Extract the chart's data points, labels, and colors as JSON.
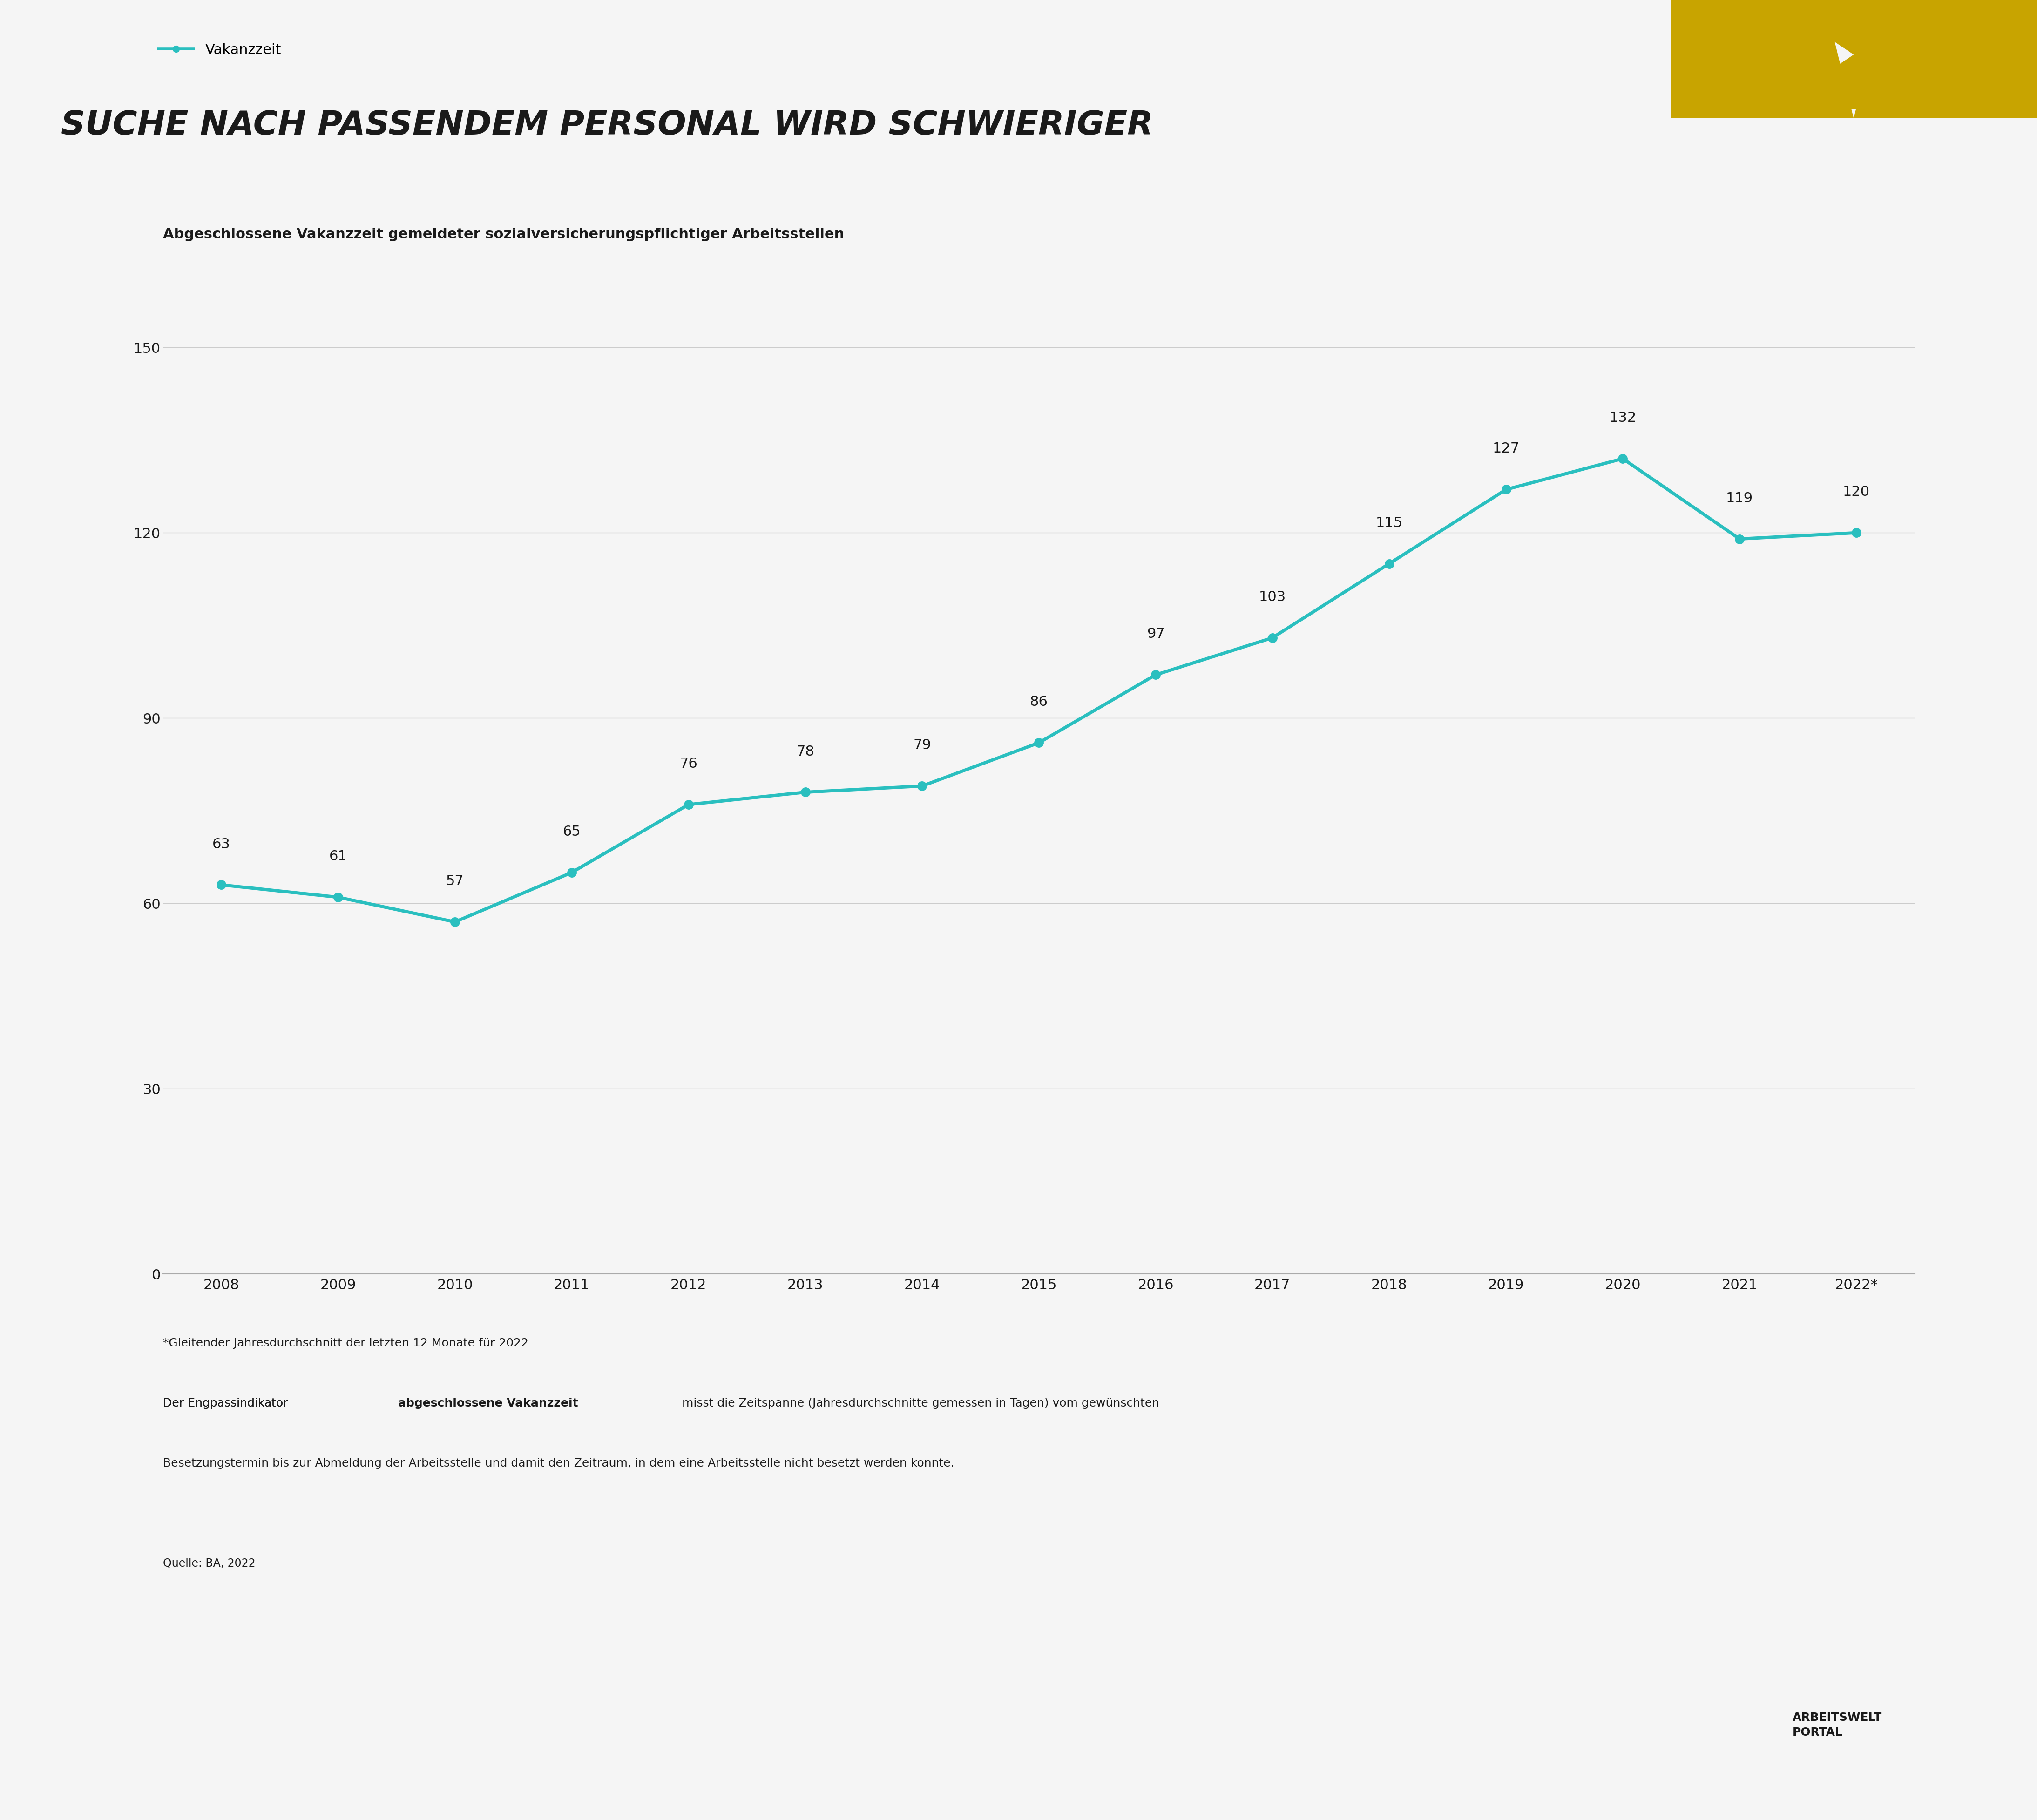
{
  "title": "SUCHE NACH PASSENDEM PERSONAL WIRD SCHWIERIGER",
  "subtitle": "Abgeschlossene Vakanzzeit gemeldeter sozialversicherungspflichtiger Arbeitsstellen",
  "legend_label": "Vakanzzeit",
  "years": [
    "2008",
    "2009",
    "2010",
    "2011",
    "2012",
    "2013",
    "2014",
    "2015",
    "2016",
    "2017",
    "2018",
    "2019",
    "2020",
    "2021",
    "2022*"
  ],
  "values": [
    63,
    61,
    57,
    65,
    76,
    78,
    79,
    86,
    97,
    103,
    115,
    127,
    132,
    119,
    120
  ],
  "line_color": "#2abfbf",
  "marker_color": "#2abfbf",
  "bg_color": "#f5f5f5",
  "title_color": "#1a1a1a",
  "text_color": "#1a1a1a",
  "yticks": [
    0,
    30,
    60,
    90,
    120,
    150
  ],
  "ylim": [
    0,
    165
  ],
  "footnote_line1": "*Gleitender Jahresdurchschnitt der letzten 12 Monate für 2022",
  "footnote_line2_plain": "Der Engpassindikator ",
  "footnote_line2_bold": "abgeschlossene Vakanzzeit",
  "footnote_line2_rest": " misst die Zeitspanne (Jahresdurchschnitte gemessen in Tagen) vom gewünschten",
  "footnote_line3": "Besetzungstermin bis zur Abmeldung der Arbeitsstelle und damit den Zeitraum, in dem eine Arbeitsstelle nicht besetzt werden konnte.",
  "source_text": "Quelle: BA, 2022",
  "logo_text": "ARBEITSWELT\nPORTAL",
  "accent_color": "#c8a400",
  "axis_color": "#aaaaaa"
}
